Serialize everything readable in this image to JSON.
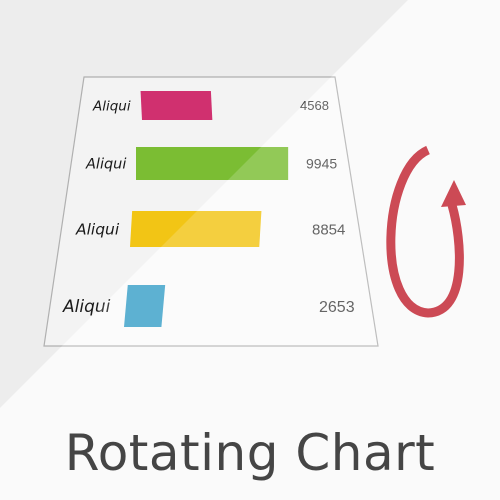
{
  "chart_data": {
    "type": "bar",
    "orientation": "horizontal",
    "categories": [
      "Aliqui",
      "Aliqui",
      "Aliqui",
      "Aliqui"
    ],
    "values": [
      4568,
      9945,
      8854,
      2653
    ],
    "colors": [
      "#d0306f",
      "#7bbd33",
      "#f2c515",
      "#3aa0c8"
    ],
    "xlim": [
      0,
      10000
    ],
    "grid": false,
    "title": "Rotating Chart"
  },
  "decor": {
    "rotate_icon": "rotate-arrow-icon",
    "icon_color": "#cc4a55",
    "accent_background": "#f9f9f9"
  }
}
